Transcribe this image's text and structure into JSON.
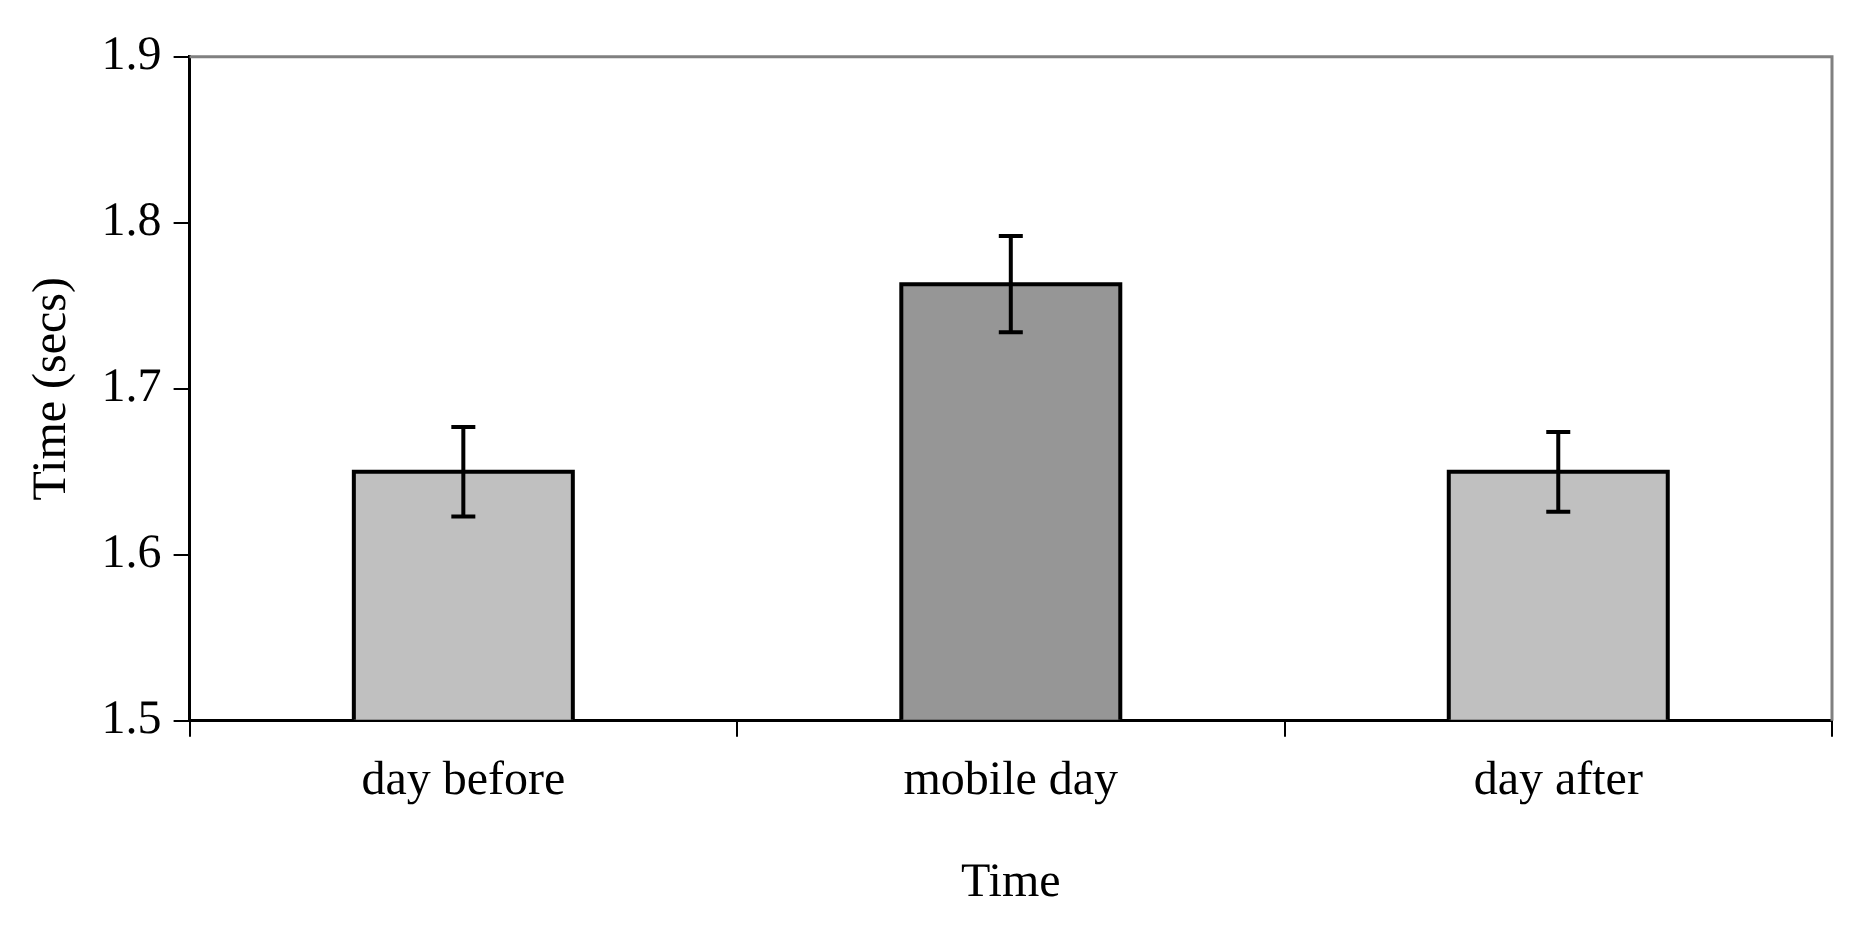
{
  "chart_data": {
    "type": "bar",
    "xlabel": "Time",
    "ylabel": "Time (secs)",
    "categories": [
      "day before",
      "mobile day",
      "day after"
    ],
    "values": [
      1.65,
      1.763,
      1.65
    ],
    "colors": [
      "#c0c0c0",
      "#969696",
      "#c0c0c0"
    ],
    "errors": [
      0.027,
      0.029,
      0.024
    ],
    "ylim": [
      1.5,
      1.9
    ],
    "yticks": [
      1.5,
      1.6,
      1.7,
      1.8,
      1.9
    ],
    "grid": false,
    "legend": false
  }
}
